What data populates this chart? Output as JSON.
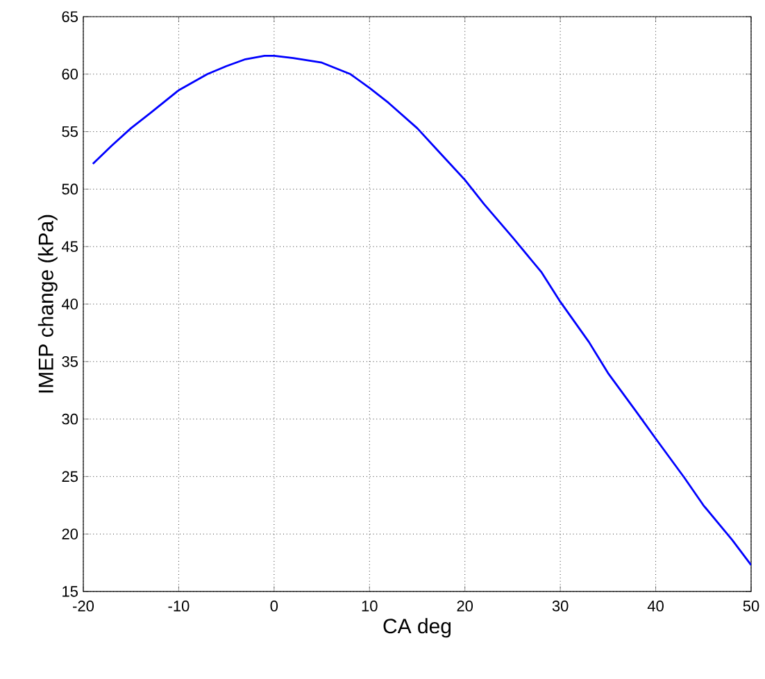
{
  "chart_data": {
    "type": "line",
    "xlabel": "CA deg",
    "ylabel": "IMEP change (kPa)",
    "x": [
      -19,
      -17,
      -15,
      -13,
      -10,
      -7,
      -5,
      -3,
      -1,
      0,
      2,
      5,
      8,
      10,
      12,
      15,
      17,
      20,
      22,
      25,
      28,
      30,
      33,
      35,
      38,
      40,
      43,
      45,
      48,
      50
    ],
    "series": [
      {
        "color": "#0000ff",
        "values": [
          52.2,
          53.8,
          55.3,
          56.6,
          58.6,
          60.0,
          60.7,
          61.3,
          61.6,
          61.6,
          61.4,
          61.0,
          60.0,
          58.8,
          57.5,
          55.3,
          53.5,
          50.8,
          48.7,
          45.8,
          42.8,
          40.2,
          36.7,
          34.0,
          30.6,
          28.3,
          24.9,
          22.5,
          19.5,
          17.3
        ]
      }
    ],
    "xlim": [
      -20,
      50
    ],
    "ylim": [
      15,
      65
    ],
    "xticks": [
      -20,
      -10,
      0,
      10,
      20,
      30,
      40,
      50
    ],
    "yticks": [
      15,
      20,
      25,
      30,
      35,
      40,
      45,
      50,
      55,
      60,
      65
    ],
    "grid": true,
    "line_style": "solid"
  }
}
